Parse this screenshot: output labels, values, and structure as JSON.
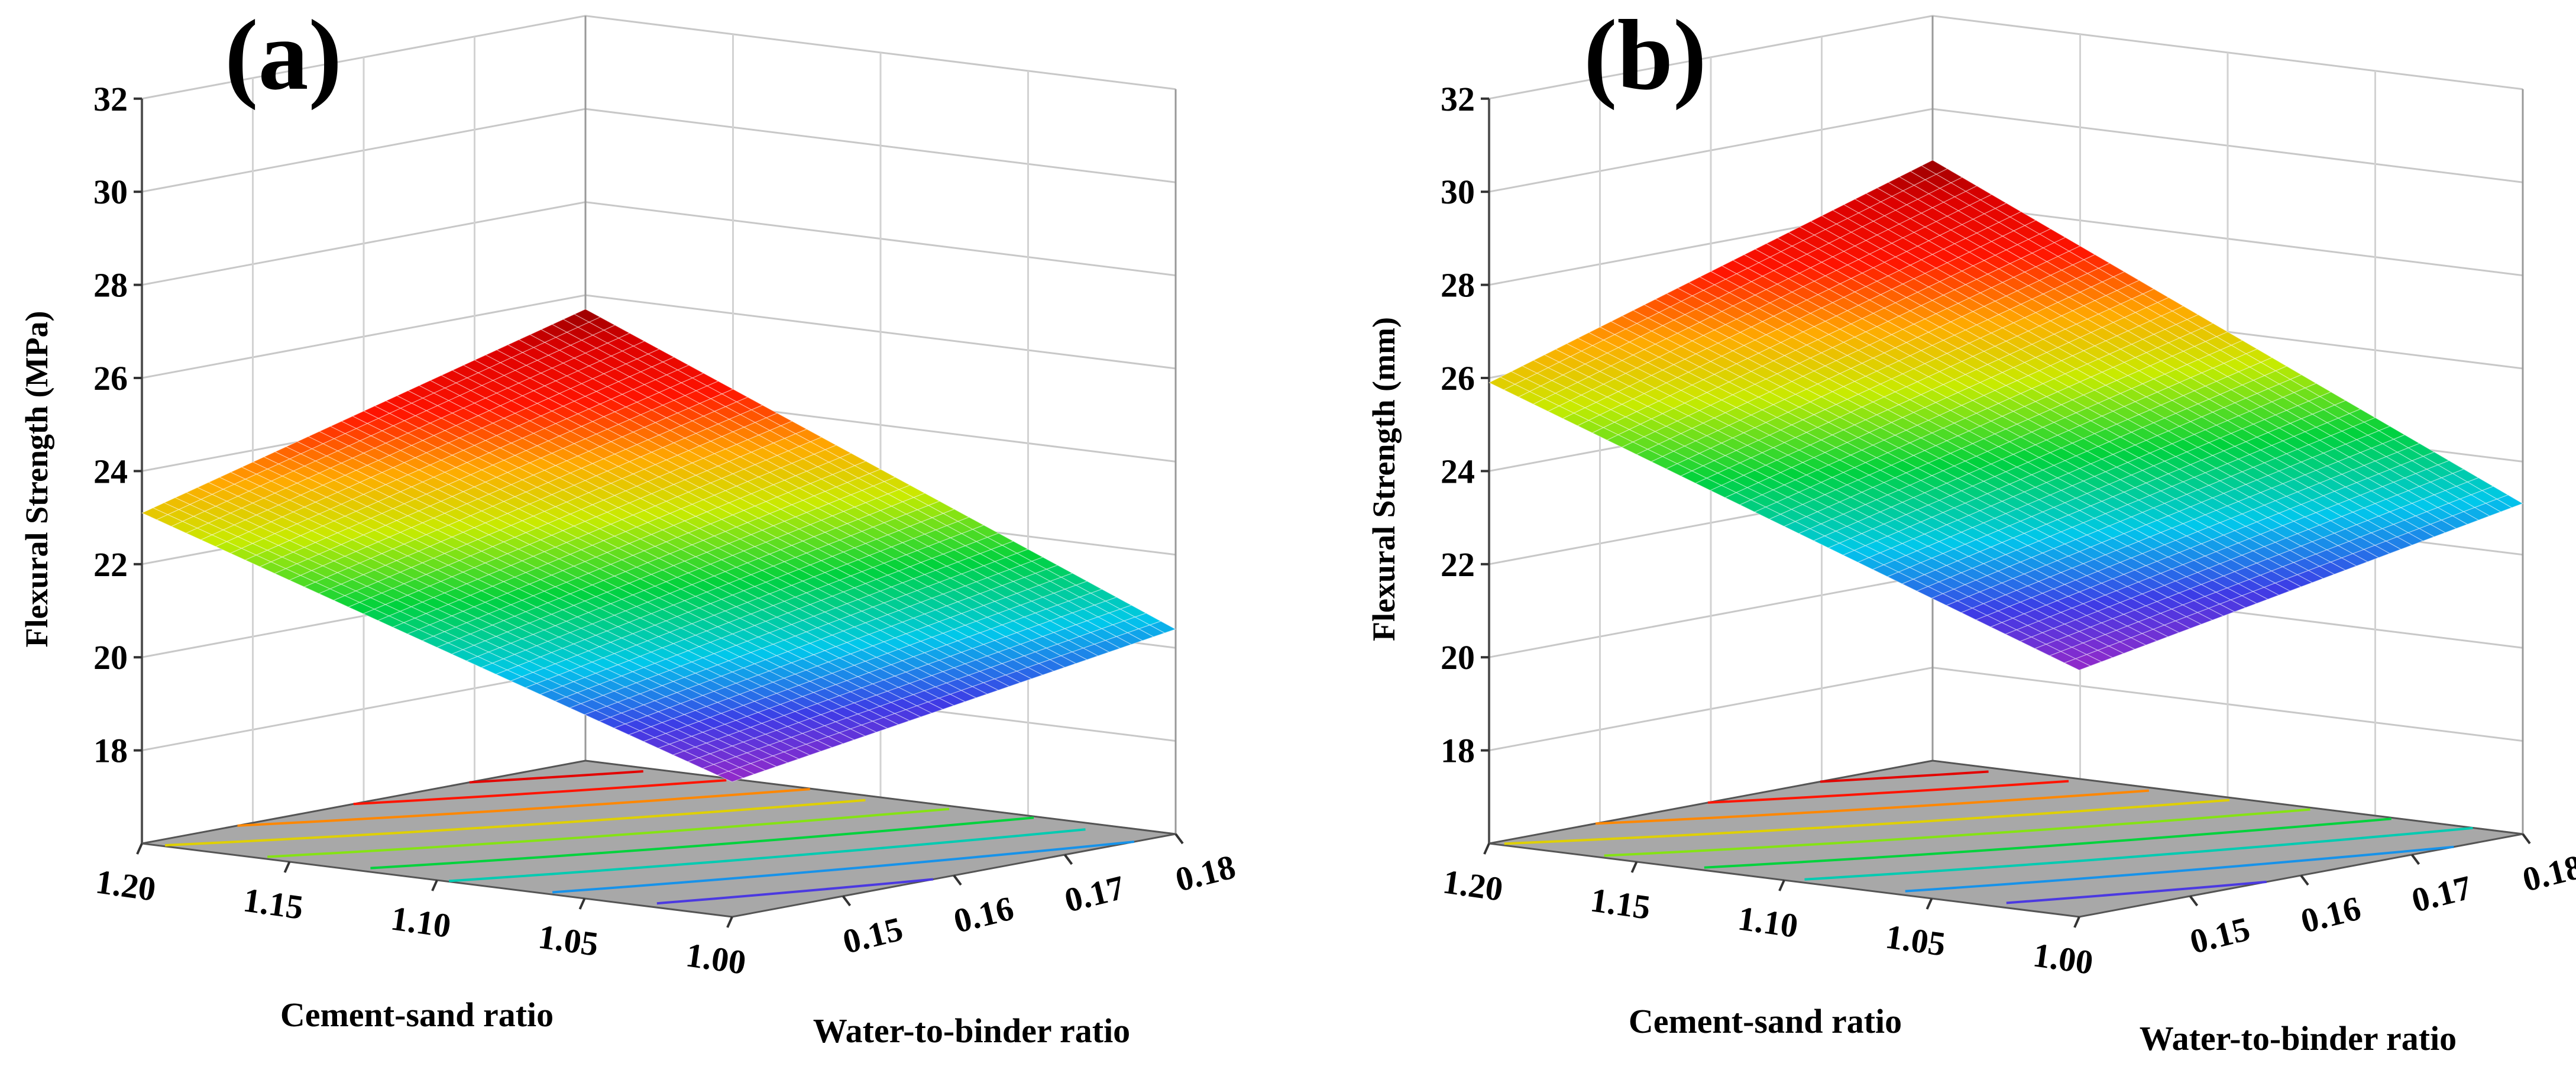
{
  "chart_data": [
    {
      "type": "surface",
      "panel_label": "(a)",
      "title": "",
      "zlabel": "Flexural Strength (MPa)",
      "xlabel": "Cement-sand ratio",
      "ylabel": "Water-to-binder ratio",
      "zlim": [
        16,
        32
      ],
      "z_ticks": [
        "18",
        "20",
        "22",
        "24",
        "26",
        "28",
        "30",
        "32"
      ],
      "x_ticks": [
        "1.20",
        "1.15",
        "1.10",
        "1.05",
        "1.00"
      ],
      "y_ticks": [
        "0.15",
        "0.16",
        "0.17",
        "0.18"
      ],
      "xlim": [
        1.0,
        1.2
      ],
      "ylim": [
        0.14,
        0.18
      ],
      "corners": {
        "x1.20_y0.14": 23.1,
        "x1.20_y0.18": 25.7,
        "x1.00_y0.14": 18.9,
        "x1.00_y0.18": 20.4
      },
      "colormap": "rainbow",
      "projected_contour": true
    },
    {
      "type": "surface",
      "panel_label": "(b)",
      "title": "",
      "zlabel": "Flexural Strength (mm)",
      "xlabel": "Cement-sand ratio",
      "ylabel": "Water-to-binder ratio",
      "zlim": [
        16,
        32
      ],
      "z_ticks": [
        "18",
        "20",
        "22",
        "24",
        "26",
        "28",
        "30",
        "32"
      ],
      "x_ticks": [
        "1.20",
        "1.15",
        "1.10",
        "1.05",
        "1.00"
      ],
      "y_ticks": [
        "0.15",
        "0.16",
        "0.17",
        "0.18"
      ],
      "xlim": [
        1.0,
        1.2
      ],
      "ylim": [
        0.14,
        0.18
      ],
      "corners": {
        "x1.20_y0.14": 25.9,
        "x1.20_y0.18": 28.9,
        "x1.00_y0.14": 21.3,
        "x1.00_y0.18": 23.1
      },
      "colormap": "rainbow",
      "projected_contour": true
    }
  ]
}
